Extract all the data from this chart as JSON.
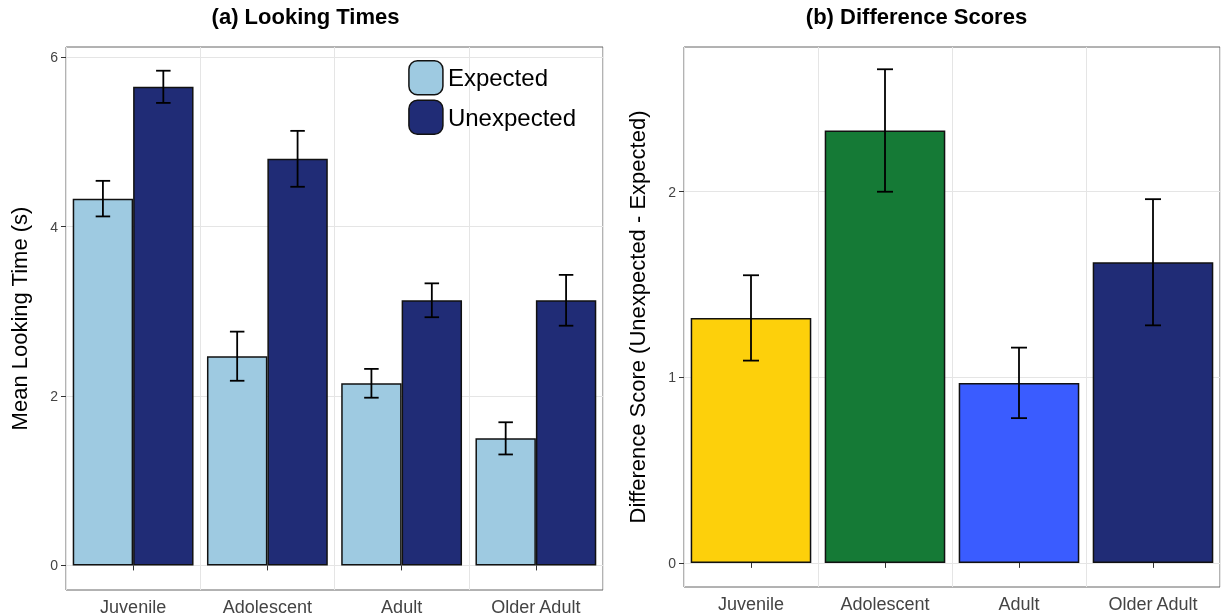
{
  "chart_data": [
    {
      "type": "bar",
      "title": "(a) Looking Times",
      "ylabel": "Mean Looking Time (s)",
      "categories": [
        "Juvenile",
        "Adolescent",
        "Adult",
        "Older Adult"
      ],
      "series": [
        {
          "name": "Expected",
          "color": "#9ecae1",
          "values": [
            4.33,
            2.47,
            2.15,
            1.5
          ],
          "errors": [
            0.21,
            0.29,
            0.17,
            0.19
          ]
        },
        {
          "name": "Unexpected",
          "color": "#202c76",
          "values": [
            5.65,
            4.8,
            3.13,
            3.13
          ],
          "errors": [
            0.19,
            0.33,
            0.2,
            0.3
          ]
        }
      ],
      "ylim": [
        -0.29,
        6.12
      ],
      "yticks": [
        0,
        2,
        4,
        6
      ],
      "grid": true,
      "legend": "top right"
    },
    {
      "type": "bar",
      "title": "(b) Difference Scores",
      "ylabel": "Difference Score (Unexpected - Expected)",
      "categories": [
        "Juvenile",
        "Adolescent",
        "Adult",
        "Older Adult"
      ],
      "values": [
        1.32,
        2.33,
        0.97,
        1.62
      ],
      "colors": [
        "#fdd00b",
        "#157a36",
        "#3a5cff",
        "#202c76"
      ],
      "errors": [
        0.23,
        0.33,
        0.19,
        0.34
      ],
      "ylim": [
        -0.13,
        2.78
      ],
      "yticks": [
        0,
        1,
        2
      ],
      "grid": true
    }
  ]
}
